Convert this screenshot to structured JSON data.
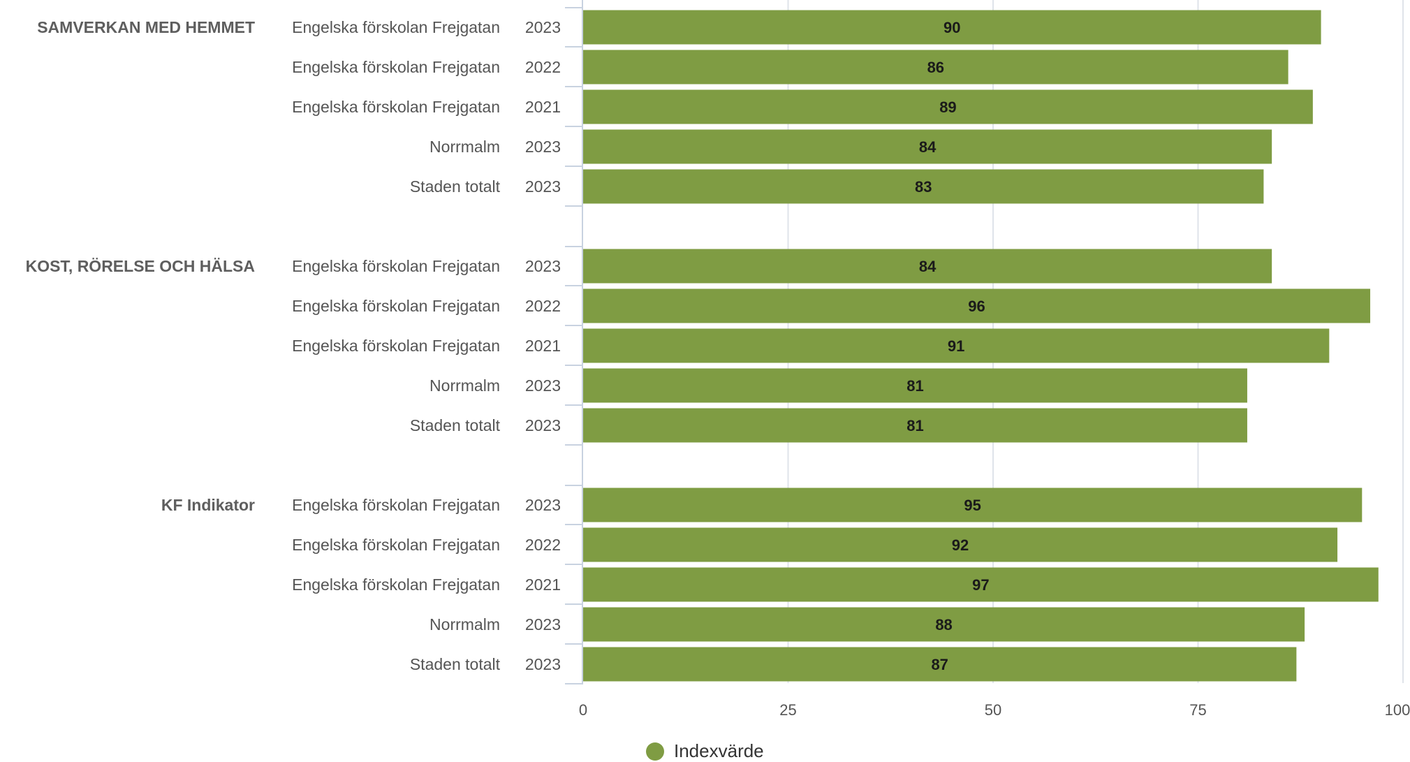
{
  "chart_data": {
    "type": "bar",
    "orientation": "horizontal",
    "xlim": [
      0,
      100
    ],
    "xticks": [
      0,
      25,
      50,
      75,
      100
    ],
    "grid": true,
    "legend_position": "bottom-center",
    "series": [
      {
        "name": "Indexvärde",
        "color": "#7f9c43"
      }
    ],
    "groups": [
      {
        "name": "SAMVERKAN MED HEMMET",
        "rows": [
          {
            "unit": "Engelska förskolan Frejgatan",
            "year": "2023",
            "value": 90
          },
          {
            "unit": "Engelska förskolan Frejgatan",
            "year": "2022",
            "value": 86
          },
          {
            "unit": "Engelska förskolan Frejgatan",
            "year": "2021",
            "value": 89
          },
          {
            "unit": "Norrmalm",
            "year": "2023",
            "value": 84
          },
          {
            "unit": "Staden totalt",
            "year": "2023",
            "value": 83
          }
        ]
      },
      {
        "name": "KOST, RÖRELSE OCH HÄLSA",
        "rows": [
          {
            "unit": "Engelska förskolan Frejgatan",
            "year": "2023",
            "value": 84
          },
          {
            "unit": "Engelska förskolan Frejgatan",
            "year": "2022",
            "value": 96
          },
          {
            "unit": "Engelska förskolan Frejgatan",
            "year": "2021",
            "value": 91
          },
          {
            "unit": "Norrmalm",
            "year": "2023",
            "value": 81
          },
          {
            "unit": "Staden totalt",
            "year": "2023",
            "value": 81
          }
        ]
      },
      {
        "name": "KF Indikator",
        "rows": [
          {
            "unit": "Engelska förskolan Frejgatan",
            "year": "2023",
            "value": 95
          },
          {
            "unit": "Engelska förskolan Frejgatan",
            "year": "2022",
            "value": 92
          },
          {
            "unit": "Engelska förskolan Frejgatan",
            "year": "2021",
            "value": 97
          },
          {
            "unit": "Norrmalm",
            "year": "2023",
            "value": 88
          },
          {
            "unit": "Staden totalt",
            "year": "2023",
            "value": 87
          }
        ]
      }
    ]
  }
}
